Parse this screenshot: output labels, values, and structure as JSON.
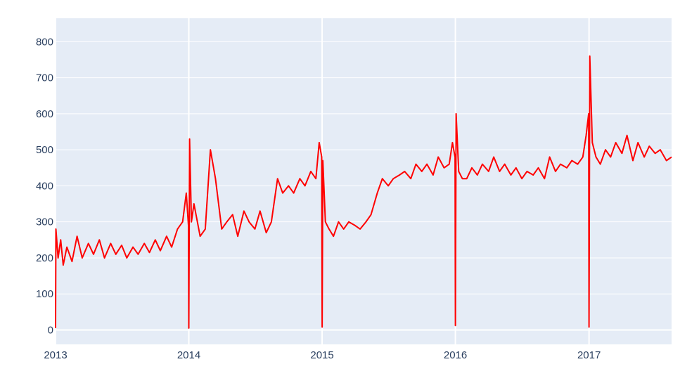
{
  "chart_data": {
    "type": "line",
    "title": "",
    "xlabel": "",
    "ylabel": "",
    "x_range": [
      "2013-01-01",
      "2017-08-15"
    ],
    "ylim": [
      -40,
      865
    ],
    "x_tick_labels": [
      {
        "label": "2013",
        "date": "2013-01-01"
      },
      {
        "label": "2014",
        "date": "2014-01-01"
      },
      {
        "label": "2015",
        "date": "2015-01-01"
      },
      {
        "label": "2016",
        "date": "2016-01-01"
      },
      {
        "label": "2017",
        "date": "2017-01-01"
      }
    ],
    "y_tick_labels": [
      {
        "label": "0",
        "value": 0
      },
      {
        "label": "100",
        "value": 100
      },
      {
        "label": "200",
        "value": 200
      },
      {
        "label": "300",
        "value": 300
      },
      {
        "label": "400",
        "value": 400
      },
      {
        "label": "500",
        "value": 500
      },
      {
        "label": "600",
        "value": 600
      },
      {
        "label": "700",
        "value": 700
      },
      {
        "label": "800",
        "value": 800
      }
    ],
    "grid": true,
    "colors": {
      "line": "#ff0000",
      "plot_bg": "#e5ecf6",
      "grid": "#ffffff",
      "tick_text": "#2a3f5f"
    },
    "series": [
      {
        "values_note_free": true,
        "x": [
          "2013-01-01",
          "2013-01-02",
          "2013-01-08",
          "2013-01-15",
          "2013-01-22",
          "2013-02-01",
          "2013-02-15",
          "2013-03-01",
          "2013-03-15",
          "2013-04-01",
          "2013-04-15",
          "2013-05-01",
          "2013-05-15",
          "2013-06-01",
          "2013-06-15",
          "2013-07-01",
          "2013-07-15",
          "2013-08-01",
          "2013-08-15",
          "2013-09-01",
          "2013-09-15",
          "2013-10-01",
          "2013-10-15",
          "2013-11-01",
          "2013-11-15",
          "2013-12-01",
          "2013-12-15",
          "2013-12-25",
          "2013-12-31",
          "2014-01-01",
          "2014-01-03",
          "2014-01-08",
          "2014-01-15",
          "2014-02-01",
          "2014-02-15",
          "2014-03-01",
          "2014-03-15",
          "2014-04-01",
          "2014-04-15",
          "2014-05-01",
          "2014-05-15",
          "2014-06-01",
          "2014-06-15",
          "2014-07-01",
          "2014-07-15",
          "2014-08-01",
          "2014-08-15",
          "2014-09-01",
          "2014-09-15",
          "2014-10-01",
          "2014-10-15",
          "2014-11-01",
          "2014-11-15",
          "2014-12-01",
          "2014-12-15",
          "2014-12-24",
          "2014-12-31",
          "2015-01-01",
          "2015-01-03",
          "2015-01-10",
          "2015-01-20",
          "2015-02-01",
          "2015-02-15",
          "2015-03-01",
          "2015-03-15",
          "2015-04-01",
          "2015-04-15",
          "2015-05-01",
          "2015-05-15",
          "2015-06-01",
          "2015-06-15",
          "2015-07-01",
          "2015-07-15",
          "2015-08-01",
          "2015-08-15",
          "2015-09-01",
          "2015-09-15",
          "2015-10-01",
          "2015-10-15",
          "2015-11-01",
          "2015-11-15",
          "2015-12-01",
          "2015-12-15",
          "2015-12-24",
          "2015-12-31",
          "2016-01-01",
          "2016-01-03",
          "2016-01-10",
          "2016-01-20",
          "2016-02-01",
          "2016-02-15",
          "2016-03-01",
          "2016-03-15",
          "2016-04-01",
          "2016-04-15",
          "2016-05-01",
          "2016-05-15",
          "2016-06-01",
          "2016-06-15",
          "2016-07-01",
          "2016-07-15",
          "2016-08-01",
          "2016-08-15",
          "2016-09-01",
          "2016-09-15",
          "2016-10-01",
          "2016-10-15",
          "2016-11-01",
          "2016-11-15",
          "2016-12-01",
          "2016-12-15",
          "2016-12-24",
          "2016-12-31",
          "2017-01-01",
          "2017-01-03",
          "2017-01-10",
          "2017-01-20",
          "2017-02-01",
          "2017-02-15",
          "2017-03-01",
          "2017-03-15",
          "2017-04-01",
          "2017-04-15",
          "2017-05-01",
          "2017-05-15",
          "2017-06-01",
          "2017-06-15",
          "2017-07-01",
          "2017-07-15",
          "2017-08-01",
          "2017-08-15"
        ],
        "y": [
          5,
          280,
          200,
          250,
          180,
          230,
          190,
          260,
          200,
          240,
          210,
          250,
          200,
          240,
          210,
          235,
          200,
          230,
          210,
          240,
          215,
          250,
          220,
          260,
          230,
          280,
          300,
          380,
          290,
          5,
          530,
          300,
          350,
          260,
          280,
          500,
          420,
          280,
          300,
          320,
          260,
          330,
          300,
          280,
          330,
          270,
          300,
          420,
          380,
          400,
          380,
          420,
          400,
          440,
          420,
          520,
          480,
          8,
          470,
          300,
          280,
          260,
          300,
          280,
          300,
          290,
          280,
          300,
          320,
          380,
          420,
          400,
          420,
          430,
          440,
          420,
          460,
          440,
          460,
          430,
          480,
          450,
          460,
          520,
          480,
          12,
          600,
          440,
          420,
          420,
          450,
          430,
          460,
          440,
          480,
          440,
          460,
          430,
          450,
          420,
          440,
          430,
          450,
          420,
          480,
          440,
          460,
          450,
          470,
          460,
          480,
          540,
          600,
          8,
          760,
          520,
          480,
          460,
          500,
          480,
          520,
          490,
          540,
          470,
          520,
          480,
          510,
          490,
          500,
          470,
          480
        ]
      }
    ]
  }
}
